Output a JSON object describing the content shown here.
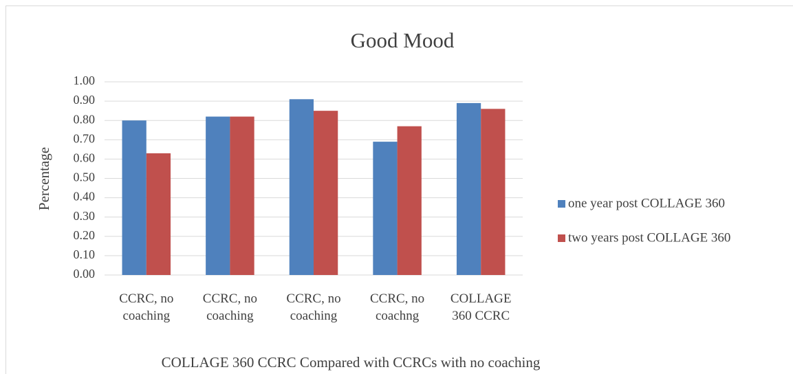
{
  "chart_data": {
    "type": "bar",
    "title": "Good Mood",
    "ylabel": "Percentage",
    "xlabel": "COLLAGE 360 CCRC Compared with CCRCs with no coaching",
    "categories": [
      "CCRC,  no\ncoaching",
      "CCRC, no\ncoaching",
      "CCRC, no\ncoaching",
      "CCRC, no\ncoachng",
      "COLLAGE\n360 CCRC"
    ],
    "series": [
      {
        "name": "one year post COLLAGE 360",
        "color": "#4f81bd",
        "values": [
          0.8,
          0.82,
          0.91,
          0.69,
          0.89
        ]
      },
      {
        "name": "two years post COLLAGE 360",
        "color": "#c0504d",
        "values": [
          0.63,
          0.82,
          0.85,
          0.77,
          0.86
        ]
      }
    ],
    "ylim": [
      0,
      1
    ],
    "yticks": [
      {
        "value": 0,
        "label": "0.00"
      },
      {
        "value": 0.1,
        "label": "0.10"
      },
      {
        "value": 0.2,
        "label": "0.20"
      },
      {
        "value": 0.3,
        "label": "0.30"
      },
      {
        "value": 0.4,
        "label": "0.40"
      },
      {
        "value": 0.5,
        "label": "0.50"
      },
      {
        "value": 0.6,
        "label": "0.60"
      },
      {
        "value": 0.7,
        "label": "0.70"
      },
      {
        "value": 0.8,
        "label": "0.80"
      },
      {
        "value": 0.9,
        "label": "0.90"
      },
      {
        "value": 1,
        "label": "1.00"
      }
    ],
    "grid": true,
    "legend": "right"
  }
}
